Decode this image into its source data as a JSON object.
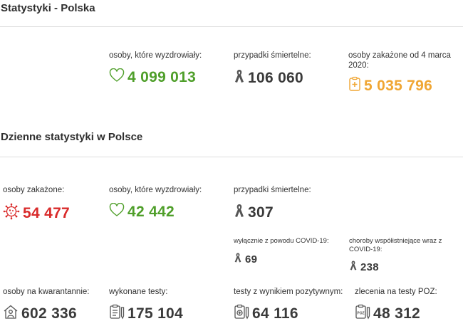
{
  "totals": {
    "title": "Statystyki - Polska",
    "recovered": {
      "label": "osoby, które wyzdrowiały:",
      "value": "4 099 013",
      "color": "#4f9f2a",
      "icon": "heart-icon"
    },
    "deaths": {
      "label": "przypadki śmiertelne:",
      "value": "106 060",
      "color": "#3a3a3a",
      "icon": "ribbon-icon"
    },
    "infected": {
      "label": "osoby zakażone od 4 marca 2020:",
      "value": "5 035 796",
      "color": "#f0a633",
      "icon": "clipboard-cross-icon"
    }
  },
  "daily": {
    "title": "Dzienne statystyki w Polsce",
    "infected": {
      "label": "osoby zakażone:",
      "value": "54 477",
      "color": "#d92b2b",
      "icon": "virus-icon"
    },
    "recovered": {
      "label": "osoby, które wyzdrowiały:",
      "value": "42 442",
      "color": "#4f9f2a",
      "icon": "heart-icon"
    },
    "deaths": {
      "label": "przypadki śmiertelne:",
      "value": "307",
      "color": "#3a3a3a",
      "icon": "ribbon-icon"
    },
    "deaths_covid_only": {
      "label": "wyłącznie z powodu COVID-19:",
      "value": "69",
      "icon": "ribbon-icon"
    },
    "deaths_comorbid": {
      "label": "choroby współistniejące wraz z COVID-19:",
      "value": "238",
      "icon": "ribbon-icon"
    },
    "quarantine": {
      "label": "osoby na kwarantannie:",
      "value": "602 336",
      "icon": "house-person-icon"
    },
    "tests": {
      "label": "wykonane testy:",
      "value": "175 104",
      "icon": "clipboard-list-icon"
    },
    "positive_tests": {
      "label": "testy z wynikiem pozytywnym:",
      "value": "64 116",
      "icon": "test-positive-icon"
    },
    "poz_orders": {
      "label": "zlecenia na testy POZ:",
      "value": "48 312",
      "icon": "poz-order-icon",
      "icon_text": "POZ"
    }
  }
}
